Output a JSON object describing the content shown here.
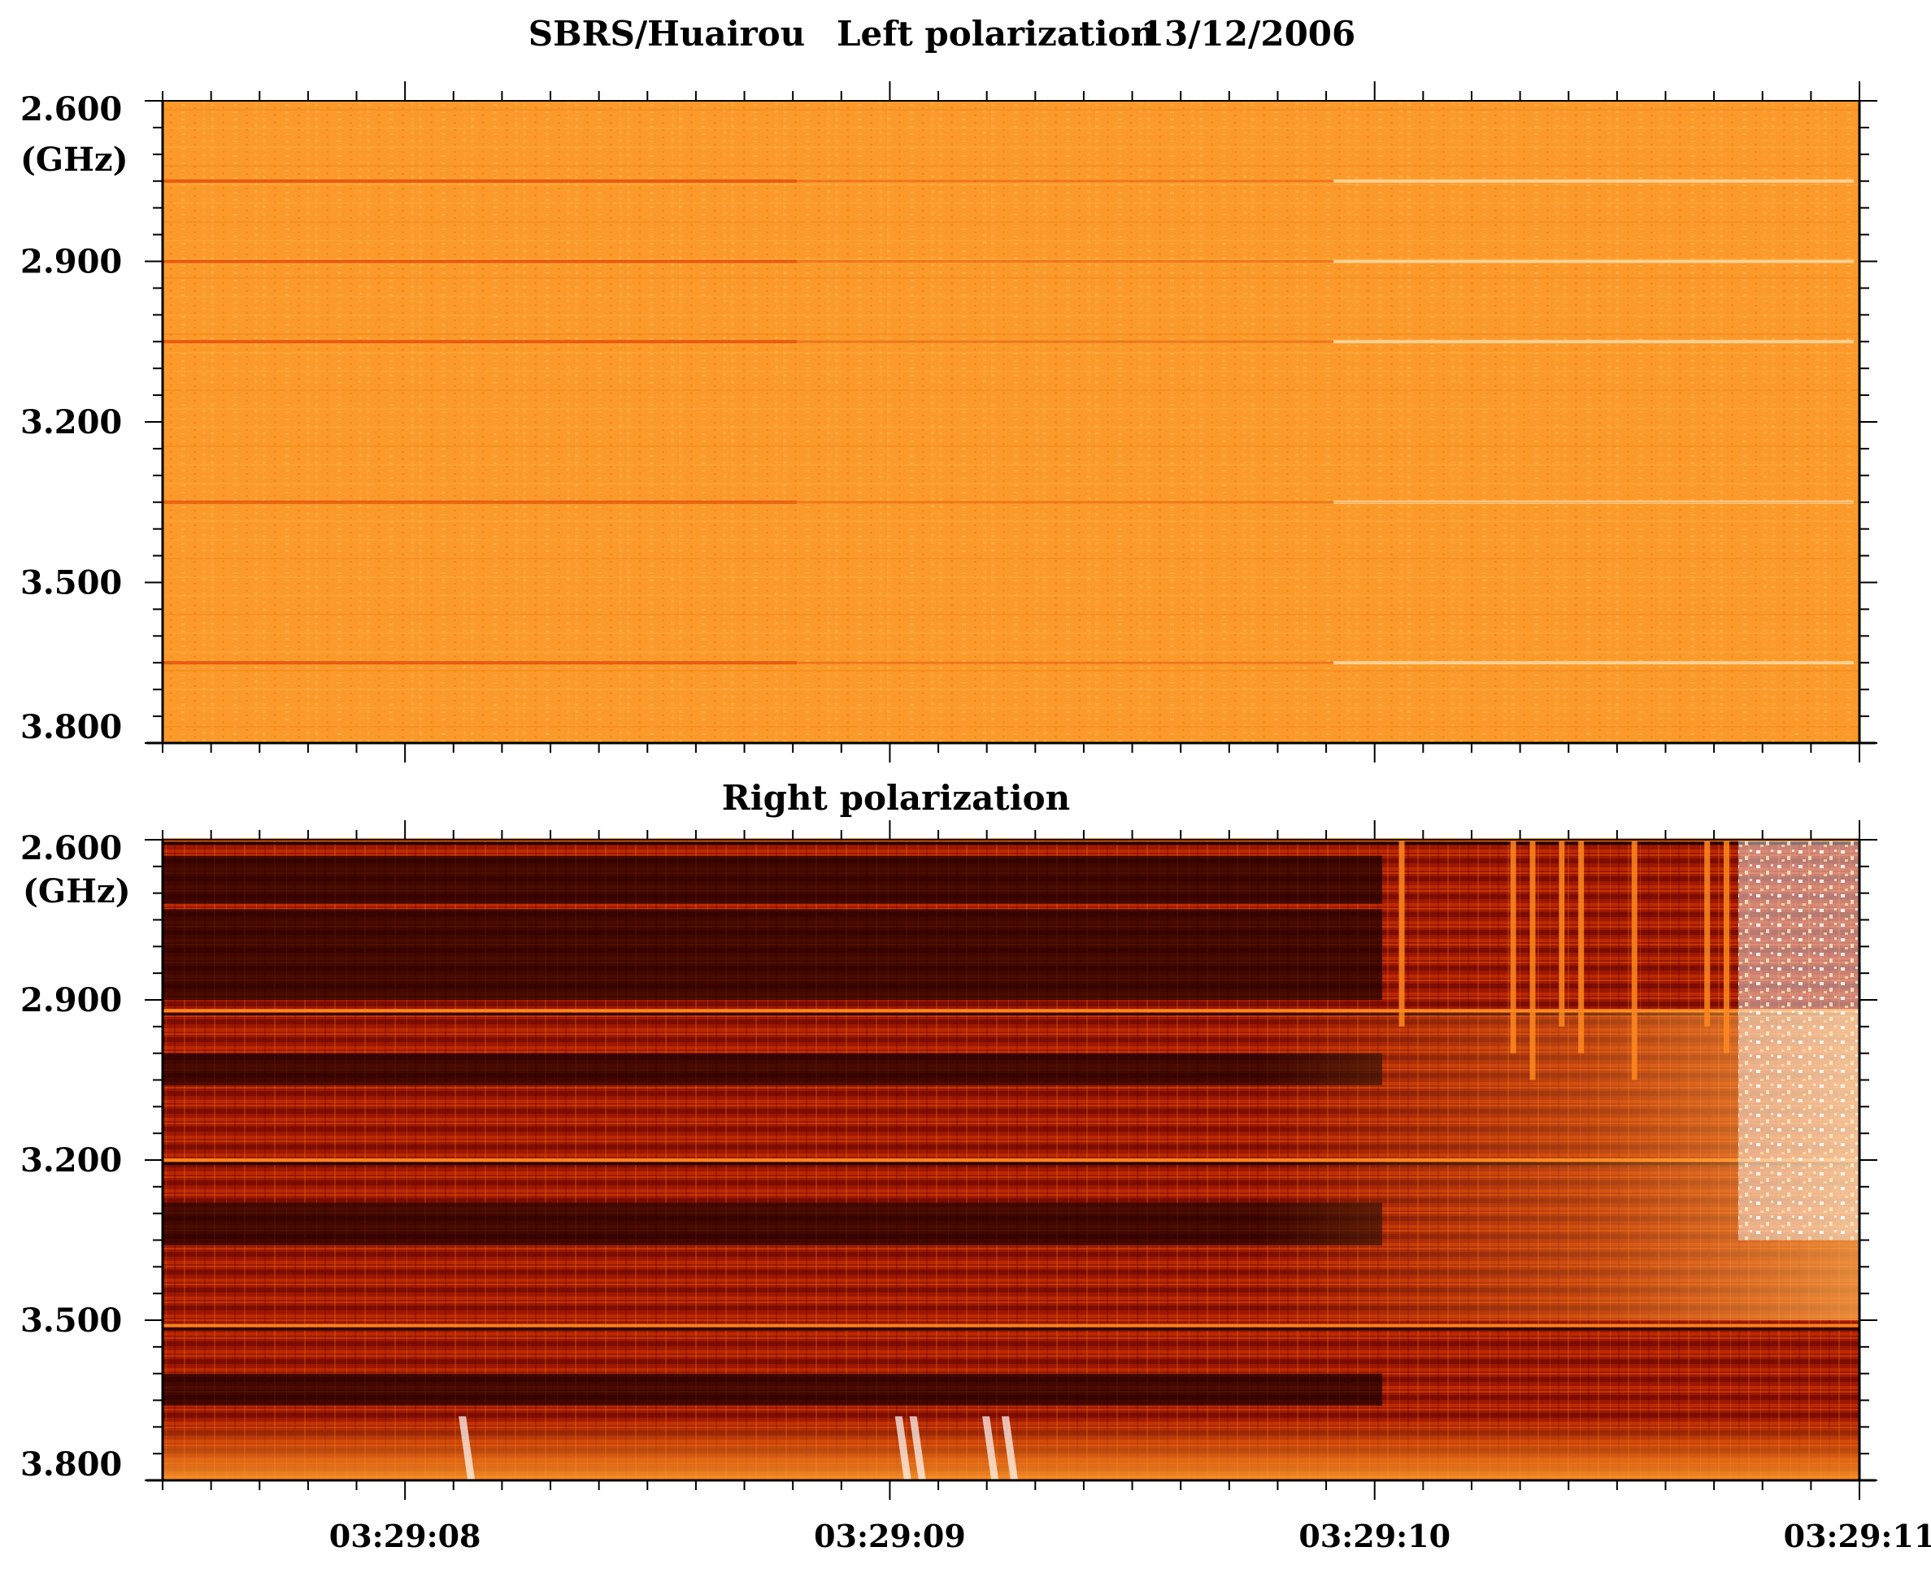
{
  "header": {
    "station": "SBRS/Huairou",
    "top_label": "Left polarization",
    "date": "13/12/2006"
  },
  "chart_data": [
    {
      "type": "heatmap",
      "title": "Left polarization",
      "ylabel": "(GHz)",
      "yticks": [
        "2.600",
        "2.900",
        "3.200",
        "3.500",
        "3.800"
      ],
      "ylim": [
        2.6,
        3.8
      ],
      "xticks": [
        "03:29:08",
        "03:29:09",
        "03:29:10",
        "03:29:11"
      ],
      "xlim_seconds": [
        7.5,
        11.0
      ],
      "colors": {
        "base": "#fb9a2a",
        "dark_line": "#e2500e",
        "bright": "#ffe6b8"
      },
      "emission_lines_ghz": [
        2.75,
        2.9,
        3.05,
        3.35,
        3.65
      ]
    },
    {
      "type": "heatmap",
      "title": "Right polarization",
      "ylabel": "(GHz)",
      "yticks": [
        "2.600",
        "2.900",
        "3.200",
        "3.500",
        "3.800"
      ],
      "ylim": [
        2.6,
        3.8
      ],
      "xticks": [
        "03:29:08",
        "03:29:09",
        "03:29:10",
        "03:29:11"
      ],
      "xlim_seconds": [
        7.5,
        11.0
      ],
      "colors": {
        "dark": "#1a0000",
        "mid": "#b52200",
        "hot": "#ff8a1e",
        "white": "#ffffff"
      },
      "bursts": "fast drift fiber bursts near 03:29:10.3 and broadband emission onset near 03:29:10.75"
    }
  ]
}
